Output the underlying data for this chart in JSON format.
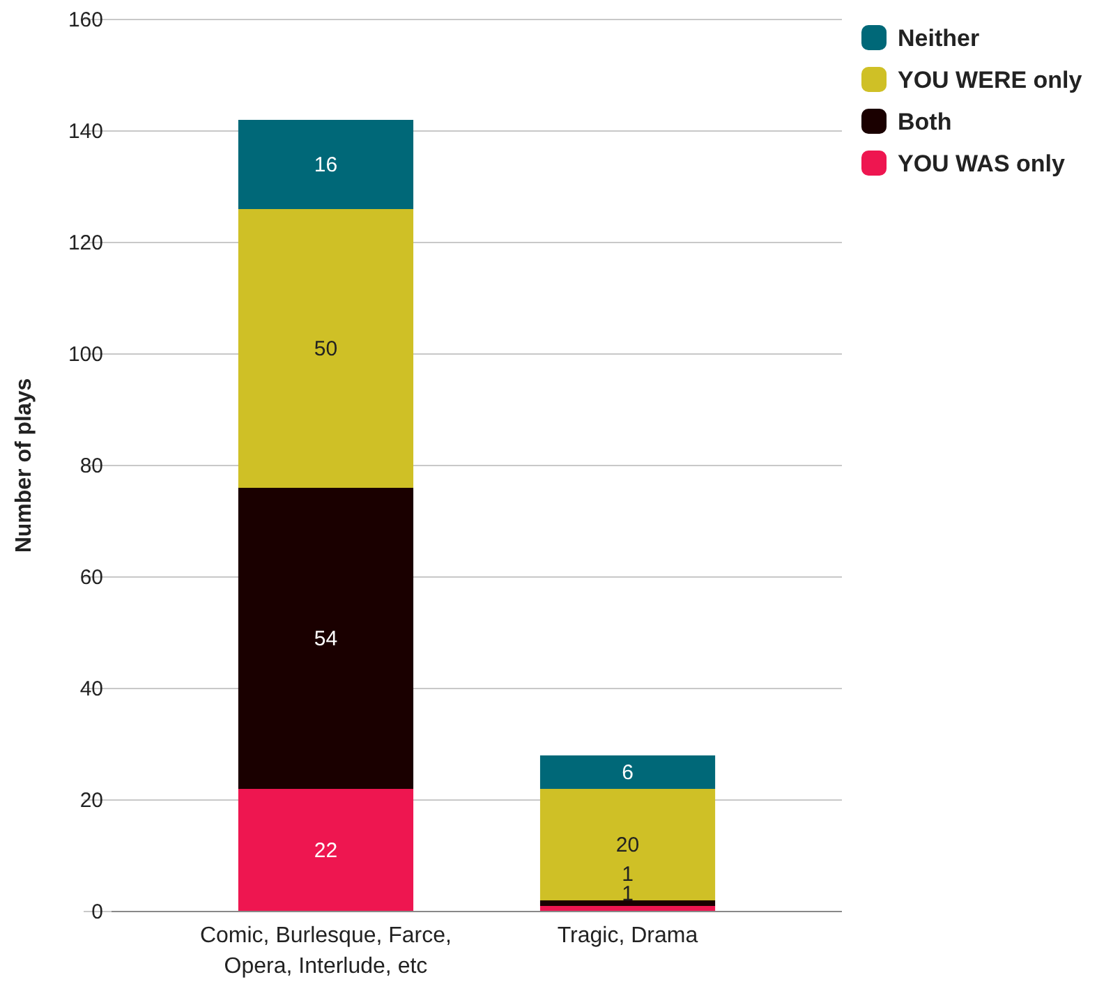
{
  "chart_data": {
    "type": "bar",
    "stacked": true,
    "ylabel": "Number of plays",
    "categories": [
      "Comic, Burlesque, Farce, Opera, Interlude, etc",
      "Tragic, Drama"
    ],
    "series": [
      {
        "name": "YOU WAS only",
        "color": "#ee1650",
        "values": [
          22,
          1
        ]
      },
      {
        "name": "Both",
        "color": "#1a0000",
        "values": [
          54,
          1
        ]
      },
      {
        "name": "YOU WERE only",
        "color": "#cfc026",
        "values": [
          50,
          20
        ]
      },
      {
        "name": "Neither",
        "color": "#006878",
        "values": [
          16,
          6
        ]
      }
    ],
    "ylim": [
      0,
      160
    ],
    "yticks": [
      0,
      20,
      40,
      60,
      80,
      100,
      120,
      140,
      160
    ],
    "grid": "y",
    "legend": "top right",
    "data_labels": true
  }
}
